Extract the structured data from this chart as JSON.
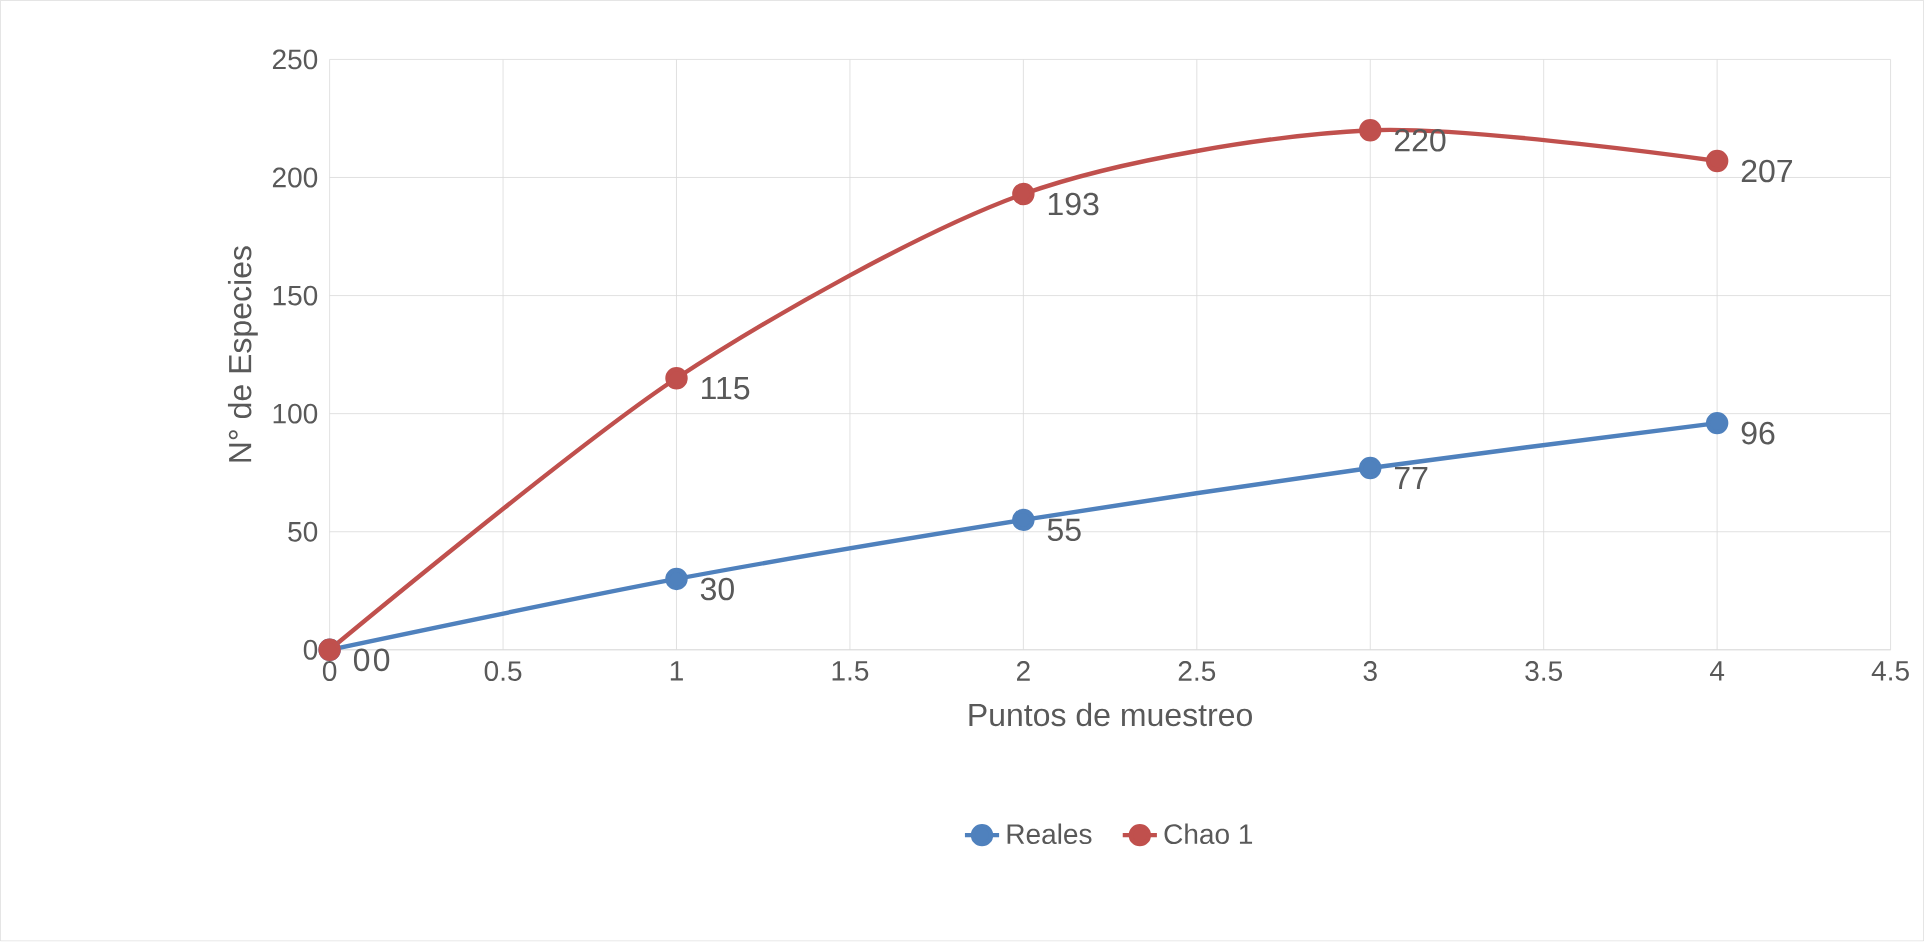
{
  "chart_data": {
    "type": "line",
    "xlabel": "Puntos de muestreo",
    "ylabel": "N° de Especies",
    "x": [
      0,
      1,
      2,
      3,
      4
    ],
    "series": [
      {
        "name": "Reales",
        "color": "#4f81bd",
        "values": [
          0,
          30,
          55,
          77,
          96
        ]
      },
      {
        "name": "Chao 1",
        "color": "#c0504d",
        "values": [
          0,
          115,
          193,
          220,
          207
        ]
      }
    ],
    "xlim": [
      0,
      4.5
    ],
    "xticks": [
      0,
      0.5,
      1,
      1.5,
      2,
      2.5,
      3,
      3.5,
      4,
      4.5
    ],
    "ylim": [
      0,
      250
    ],
    "yticks": [
      0,
      50,
      100,
      150,
      200,
      250
    ],
    "grid": true,
    "legend": "bottom",
    "marker": "circle",
    "line_style": "solid",
    "data_labels": true
  }
}
